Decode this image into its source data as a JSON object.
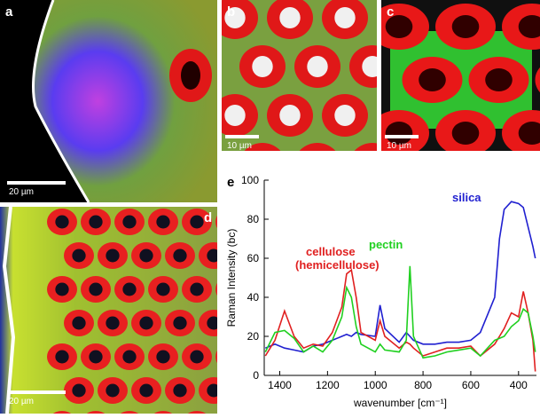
{
  "panels": [
    {
      "label": "a",
      "scale_bar": "20 µm"
    },
    {
      "label": "b",
      "scale_bar": "10 µm"
    },
    {
      "label": "c",
      "scale_bar": "10 µm"
    },
    {
      "label": "d",
      "scale_bar": "20 µm"
    }
  ],
  "chart_data": {
    "type": "line",
    "panel_label": "e",
    "x_label": "wavenumber [cm⁻¹]",
    "y_label": "Raman Intensity (bc)",
    "xlim": [
      1465,
      325
    ],
    "xticks": [
      1400,
      1200,
      1000,
      800,
      600,
      400
    ],
    "ylim": [
      0,
      100
    ],
    "yticks": [
      0,
      20,
      40,
      60,
      80,
      100
    ],
    "x": [
      1460,
      1420,
      1380,
      1340,
      1300,
      1260,
      1220,
      1180,
      1140,
      1120,
      1100,
      1080,
      1060,
      1000,
      980,
      960,
      900,
      870,
      855,
      840,
      800,
      750,
      700,
      650,
      600,
      560,
      500,
      480,
      460,
      430,
      400,
      380,
      360,
      340,
      330
    ],
    "series": [
      {
        "name": "silica",
        "color": "#2020d0",
        "values": [
          14,
          16,
          14,
          13,
          12,
          15,
          16,
          18,
          20,
          21,
          20,
          22,
          21,
          20,
          36,
          24,
          17,
          22,
          20,
          18,
          16,
          16,
          17,
          17,
          18,
          22,
          40,
          70,
          85,
          89,
          88,
          86,
          76,
          66,
          60
        ]
      },
      {
        "name": "cellulose",
        "color": "#e02020",
        "values": [
          10,
          18,
          33,
          20,
          14,
          16,
          15,
          22,
          35,
          52,
          54,
          40,
          22,
          18,
          28,
          20,
          14,
          17,
          16,
          14,
          10,
          12,
          14,
          14,
          15,
          10,
          16,
          20,
          24,
          32,
          30,
          43,
          32,
          18,
          2
        ]
      },
      {
        "name": "pectin",
        "color": "#20d020",
        "values": [
          12,
          22,
          23,
          19,
          12,
          15,
          12,
          18,
          30,
          45,
          40,
          25,
          16,
          12,
          16,
          13,
          12,
          18,
          56,
          20,
          9,
          10,
          12,
          13,
          14,
          10,
          18,
          19,
          20,
          25,
          28,
          34,
          32,
          20,
          12
        ]
      }
    ],
    "annotations": [
      {
        "text": "(hemicellulose)",
        "color": "#e02020"
      }
    ]
  }
}
